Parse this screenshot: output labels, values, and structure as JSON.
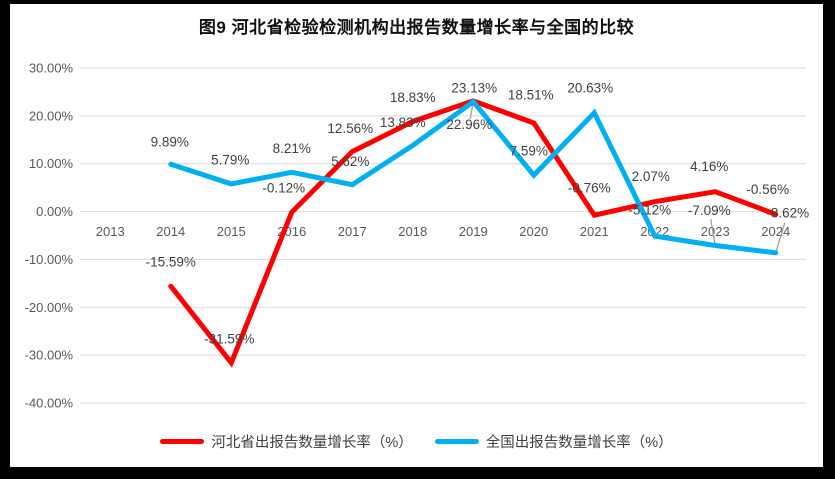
{
  "window": {
    "frame_color": "#000000",
    "panel_background": "#ffffff"
  },
  "chart_data": {
    "type": "line",
    "title": "图9 河北省检验检测机构出报告数量增长率与全国的比较",
    "categories": [
      "2013",
      "2014",
      "2015",
      "2016",
      "2017",
      "2018",
      "2019",
      "2020",
      "2021",
      "2022",
      "2023",
      "2024"
    ],
    "series": [
      {
        "key": "hebei",
        "name": "河北省出报告数量增长率（%）",
        "color": "#fe0000",
        "values": [
          null,
          -15.59,
          -31.59,
          -0.12,
          12.56,
          18.83,
          23.13,
          18.51,
          -0.76,
          2.07,
          4.16,
          -0.56
        ],
        "label_offsets": [
          null,
          [
            0,
            -24
          ],
          [
            -2,
            -24
          ],
          [
            -8,
            -24
          ],
          [
            -2,
            -23
          ],
          [
            0,
            -24
          ],
          [
            1,
            -13
          ],
          [
            -3,
            -28
          ],
          [
            -5,
            -27
          ],
          [
            -4,
            -25
          ],
          [
            -6,
            -25
          ],
          [
            -8,
            -25
          ]
        ]
      },
      {
        "key": "national",
        "name": "全国出报告数量增长率（%）",
        "color": "#00b0f0",
        "values": [
          null,
          9.89,
          5.79,
          8.21,
          5.62,
          13.83,
          22.96,
          7.59,
          20.63,
          -5.12,
          -7.09,
          -8.62
        ],
        "label_offsets": [
          null,
          [
            -1,
            -22
          ],
          [
            -1,
            -24
          ],
          [
            0,
            -24
          ],
          [
            -2,
            -23
          ],
          [
            -10,
            -23
          ],
          [
            -4,
            23,
            1
          ],
          [
            -5,
            -24
          ],
          [
            -4,
            -25
          ],
          [
            -5,
            -26
          ],
          [
            -6,
            -35,
            1
          ],
          [
            12,
            -40,
            1
          ]
        ]
      }
    ],
    "ylim": [
      -40,
      30
    ],
    "yticks": [
      30,
      20,
      10,
      0,
      -10,
      -20,
      -30,
      -40
    ],
    "ytick_format": "0.00%",
    "data_label_format": "0.00%",
    "grid": true,
    "legend_position": "bottom",
    "styles": {
      "grid_color": "#d9d9d9",
      "axis_text_color": "#595959",
      "data_label_color": "#404040",
      "leader_color": "#9e9e9e",
      "title_color": "#111111",
      "legend_text_color": "#404040",
      "line_width": 5
    }
  }
}
